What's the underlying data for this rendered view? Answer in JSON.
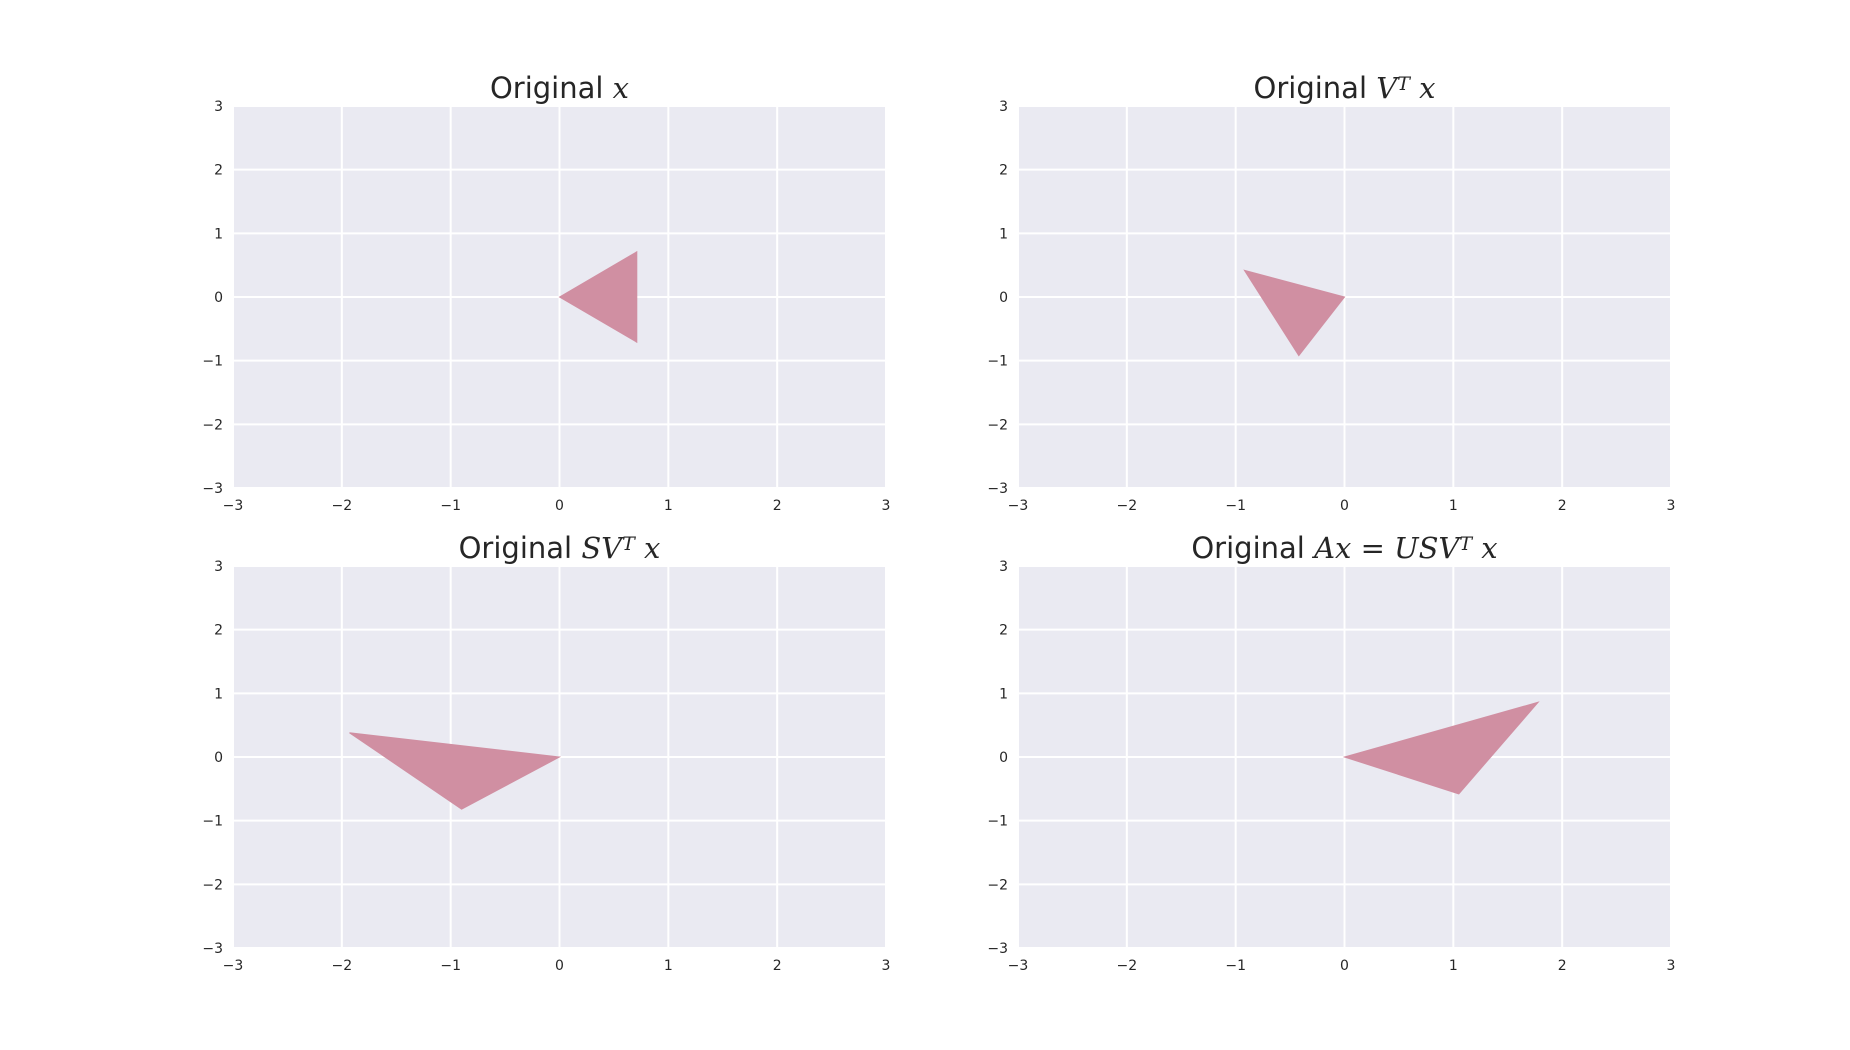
{
  "chart_data": [
    {
      "type": "area",
      "title_prefix": "Original",
      "title_math": [
        {
          "t": "x"
        }
      ],
      "xlim": [
        -3,
        3
      ],
      "ylim": [
        -3,
        3
      ],
      "xticks": [
        "−3",
        "−2",
        "−1",
        "0",
        "1",
        "2",
        "3"
      ],
      "yticks": [
        "3",
        "2",
        "1",
        "0",
        "−1",
        "−2",
        "−3"
      ],
      "grid": true,
      "polygon": [
        [
          0,
          0
        ],
        [
          0.71,
          0.71
        ],
        [
          0.71,
          -0.71
        ]
      ],
      "fill_color": "#d08fa2"
    },
    {
      "type": "area",
      "title_prefix": "Original",
      "title_math": [
        {
          "t": "V"
        },
        {
          "t": "T",
          "sup": true
        },
        {
          "t": " x"
        }
      ],
      "xlim": [
        -3,
        3
      ],
      "ylim": [
        -3,
        3
      ],
      "xticks": [
        "−3",
        "−2",
        "−1",
        "0",
        "1",
        "2",
        "3"
      ],
      "yticks": [
        "3",
        "2",
        "1",
        "0",
        "−1",
        "−2",
        "−3"
      ],
      "grid": true,
      "polygon": [
        [
          0,
          0
        ],
        [
          -0.92,
          0.42
        ],
        [
          -0.42,
          -0.92
        ]
      ],
      "fill_color": "#d08fa2"
    },
    {
      "type": "area",
      "title_prefix": "Original",
      "title_math": [
        {
          "t": "SV"
        },
        {
          "t": "T",
          "sup": true
        },
        {
          "t": " x"
        }
      ],
      "xlim": [
        -3,
        3
      ],
      "ylim": [
        -3,
        3
      ],
      "xticks": [
        "−3",
        "−2",
        "−1",
        "0",
        "1",
        "2",
        "3"
      ],
      "yticks": [
        "3",
        "2",
        "1",
        "0",
        "−1",
        "−2",
        "−3"
      ],
      "grid": true,
      "polygon": [
        [
          0,
          0
        ],
        [
          -1.93,
          0.38
        ],
        [
          -0.9,
          -0.82
        ]
      ],
      "fill_color": "#d08fa2"
    },
    {
      "type": "area",
      "title_prefix": "Original",
      "title_math": [
        {
          "t": "Ax"
        },
        {
          "t": " = "
        },
        {
          "t": "USV"
        },
        {
          "t": "T",
          "sup": true
        },
        {
          "t": " x"
        }
      ],
      "xlim": [
        -3,
        3
      ],
      "ylim": [
        -3,
        3
      ],
      "xticks": [
        "−3",
        "−2",
        "−1",
        "0",
        "1",
        "2",
        "3"
      ],
      "yticks": [
        "3",
        "2",
        "1",
        "0",
        "−1",
        "−2",
        "−3"
      ],
      "grid": true,
      "polygon": [
        [
          0,
          0
        ],
        [
          1.78,
          0.86
        ],
        [
          1.05,
          -0.58
        ]
      ],
      "fill_color": "#d08fa2"
    }
  ]
}
